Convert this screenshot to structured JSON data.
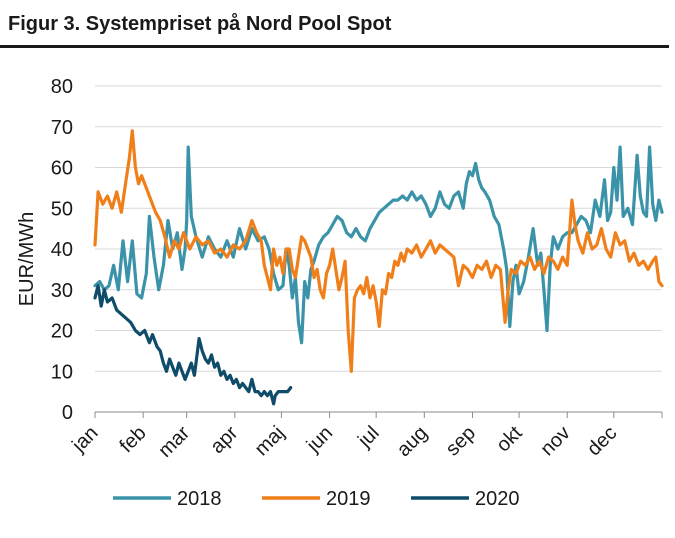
{
  "figure_title": "Figur 3. Systempriset på Nord Pool Spot",
  "chart_data": {
    "type": "line",
    "title": "Figur 3. Systempriset på Nord Pool Spot",
    "xlabel": "",
    "ylabel": "EUR/MWh",
    "ylim": [
      0,
      80
    ],
    "yticks": [
      0,
      10,
      20,
      30,
      40,
      50,
      60,
      70,
      80
    ],
    "xlim": [
      1,
      366
    ],
    "x_unit": "day of year",
    "month_labels": [
      "jan",
      "feb",
      "mar",
      "apr",
      "maj",
      "jun",
      "jul",
      "aug",
      "sep",
      "okt",
      "nov",
      "dec"
    ],
    "month_start_days": [
      1,
      32,
      60,
      91,
      121,
      152,
      182,
      213,
      244,
      274,
      305,
      335
    ],
    "grid": "horizontal",
    "legend_position": "bottom",
    "series": [
      {
        "name": "2018",
        "color": "#3a93a8",
        "points": [
          [
            1,
            31
          ],
          [
            4,
            32
          ],
          [
            7,
            30
          ],
          [
            10,
            31
          ],
          [
            13,
            36
          ],
          [
            16,
            30
          ],
          [
            19,
            42
          ],
          [
            22,
            32
          ],
          [
            25,
            42
          ],
          [
            28,
            29
          ],
          [
            31,
            28
          ],
          [
            34,
            34
          ],
          [
            36,
            48
          ],
          [
            39,
            38
          ],
          [
            42,
            30
          ],
          [
            45,
            36
          ],
          [
            48,
            47
          ],
          [
            51,
            40
          ],
          [
            54,
            44
          ],
          [
            57,
            35
          ],
          [
            59,
            40
          ],
          [
            60,
            47
          ],
          [
            61,
            65
          ],
          [
            63,
            48
          ],
          [
            66,
            43
          ],
          [
            70,
            38
          ],
          [
            74,
            43
          ],
          [
            78,
            40
          ],
          [
            82,
            38
          ],
          [
            86,
            42
          ],
          [
            90,
            38
          ],
          [
            94,
            45
          ],
          [
            98,
            40
          ],
          [
            102,
            45
          ],
          [
            106,
            42
          ],
          [
            110,
            43
          ],
          [
            113,
            40
          ],
          [
            116,
            34
          ],
          [
            119,
            30
          ],
          [
            122,
            31
          ],
          [
            124,
            40
          ],
          [
            126,
            36
          ],
          [
            128,
            28
          ],
          [
            130,
            33
          ],
          [
            132,
            22
          ],
          [
            134,
            17
          ],
          [
            136,
            32
          ],
          [
            138,
            28
          ],
          [
            140,
            35
          ],
          [
            142,
            37
          ],
          [
            145,
            41
          ],
          [
            148,
            43
          ],
          [
            151,
            44
          ],
          [
            154,
            46
          ],
          [
            157,
            48
          ],
          [
            160,
            47
          ],
          [
            163,
            44
          ],
          [
            166,
            43
          ],
          [
            169,
            45
          ],
          [
            172,
            43
          ],
          [
            175,
            42
          ],
          [
            178,
            45
          ],
          [
            181,
            47
          ],
          [
            184,
            49
          ],
          [
            187,
            50
          ],
          [
            190,
            51
          ],
          [
            193,
            52
          ],
          [
            196,
            52
          ],
          [
            199,
            53
          ],
          [
            202,
            52
          ],
          [
            205,
            54
          ],
          [
            208,
            52
          ],
          [
            211,
            53
          ],
          [
            214,
            51
          ],
          [
            217,
            48
          ],
          [
            220,
            50
          ],
          [
            223,
            54
          ],
          [
            226,
            51
          ],
          [
            229,
            50
          ],
          [
            232,
            53
          ],
          [
            235,
            54
          ],
          [
            238,
            50
          ],
          [
            240,
            56
          ],
          [
            242,
            59
          ],
          [
            244,
            58
          ],
          [
            246,
            61
          ],
          [
            248,
            57
          ],
          [
            250,
            55
          ],
          [
            252,
            54
          ],
          [
            255,
            52
          ],
          [
            258,
            48
          ],
          [
            261,
            46
          ],
          [
            264,
            40
          ],
          [
            266,
            35
          ],
          [
            268,
            21
          ],
          [
            270,
            32
          ],
          [
            272,
            36
          ],
          [
            274,
            29
          ],
          [
            277,
            32
          ],
          [
            280,
            38
          ],
          [
            283,
            45
          ],
          [
            286,
            36
          ],
          [
            288,
            39
          ],
          [
            290,
            30
          ],
          [
            292,
            20
          ],
          [
            294,
            36
          ],
          [
            296,
            43
          ],
          [
            299,
            40
          ],
          [
            302,
            43
          ],
          [
            305,
            44
          ],
          [
            308,
            44
          ],
          [
            311,
            46
          ],
          [
            314,
            48
          ],
          [
            317,
            47
          ],
          [
            320,
            44
          ],
          [
            323,
            52
          ],
          [
            326,
            48
          ],
          [
            329,
            57
          ],
          [
            331,
            47
          ],
          [
            333,
            49
          ],
          [
            335,
            60
          ],
          [
            337,
            52
          ],
          [
            339,
            65
          ],
          [
            341,
            48
          ],
          [
            344,
            50
          ],
          [
            347,
            46
          ],
          [
            350,
            63
          ],
          [
            352,
            53
          ],
          [
            354,
            49
          ],
          [
            356,
            48
          ],
          [
            358,
            65
          ],
          [
            360,
            51
          ],
          [
            362,
            47
          ],
          [
            364,
            52
          ],
          [
            366,
            49
          ]
        ]
      },
      {
        "name": "2019",
        "color": "#f07f1a",
        "points": [
          [
            1,
            41
          ],
          [
            3,
            54
          ],
          [
            6,
            51
          ],
          [
            9,
            53
          ],
          [
            12,
            50
          ],
          [
            15,
            54
          ],
          [
            18,
            49
          ],
          [
            21,
            57
          ],
          [
            23,
            62
          ],
          [
            25,
            69
          ],
          [
            27,
            60
          ],
          [
            29,
            56
          ],
          [
            31,
            58
          ],
          [
            34,
            55
          ],
          [
            37,
            52
          ],
          [
            40,
            49
          ],
          [
            43,
            47
          ],
          [
            46,
            43
          ],
          [
            49,
            38
          ],
          [
            52,
            42
          ],
          [
            55,
            40
          ],
          [
            58,
            44
          ],
          [
            62,
            40
          ],
          [
            66,
            43
          ],
          [
            70,
            41
          ],
          [
            74,
            42
          ],
          [
            78,
            39
          ],
          [
            82,
            40
          ],
          [
            86,
            38
          ],
          [
            90,
            41
          ],
          [
            94,
            40
          ],
          [
            98,
            42
          ],
          [
            102,
            47
          ],
          [
            105,
            44
          ],
          [
            108,
            42
          ],
          [
            110,
            36
          ],
          [
            112,
            33
          ],
          [
            114,
            30
          ],
          [
            116,
            40
          ],
          [
            118,
            36
          ],
          [
            120,
            38
          ],
          [
            122,
            34
          ],
          [
            124,
            40
          ],
          [
            126,
            40
          ],
          [
            128,
            35
          ],
          [
            130,
            33
          ],
          [
            132,
            38
          ],
          [
            134,
            43
          ],
          [
            136,
            42
          ],
          [
            138,
            40
          ],
          [
            140,
            38
          ],
          [
            142,
            33
          ],
          [
            144,
            35
          ],
          [
            146,
            30
          ],
          [
            148,
            28
          ],
          [
            150,
            34
          ],
          [
            152,
            36
          ],
          [
            154,
            40
          ],
          [
            156,
            35
          ],
          [
            158,
            30
          ],
          [
            160,
            33
          ],
          [
            162,
            37
          ],
          [
            164,
            20
          ],
          [
            166,
            10
          ],
          [
            168,
            28
          ],
          [
            170,
            30
          ],
          [
            172,
            31
          ],
          [
            174,
            29
          ],
          [
            176,
            33
          ],
          [
            178,
            28
          ],
          [
            180,
            31
          ],
          [
            182,
            27
          ],
          [
            184,
            21
          ],
          [
            186,
            30
          ],
          [
            188,
            29
          ],
          [
            190,
            34
          ],
          [
            192,
            33
          ],
          [
            194,
            37
          ],
          [
            196,
            36
          ],
          [
            198,
            39
          ],
          [
            200,
            37
          ],
          [
            202,
            40
          ],
          [
            205,
            39
          ],
          [
            208,
            41
          ],
          [
            211,
            38
          ],
          [
            214,
            40
          ],
          [
            217,
            42
          ],
          [
            220,
            39
          ],
          [
            223,
            41
          ],
          [
            226,
            40
          ],
          [
            229,
            39
          ],
          [
            232,
            38
          ],
          [
            235,
            31
          ],
          [
            238,
            36
          ],
          [
            241,
            35
          ],
          [
            244,
            33
          ],
          [
            247,
            36
          ],
          [
            250,
            35
          ],
          [
            253,
            37
          ],
          [
            256,
            33
          ],
          [
            259,
            36
          ],
          [
            262,
            35
          ],
          [
            265,
            22
          ],
          [
            267,
            30
          ],
          [
            269,
            35
          ],
          [
            272,
            34
          ],
          [
            275,
            37
          ],
          [
            278,
            36
          ],
          [
            281,
            38
          ],
          [
            284,
            35
          ],
          [
            287,
            37
          ],
          [
            290,
            34
          ],
          [
            293,
            38
          ],
          [
            296,
            37
          ],
          [
            299,
            35
          ],
          [
            302,
            38
          ],
          [
            305,
            36
          ],
          [
            308,
            52
          ],
          [
            310,
            46
          ],
          [
            312,
            42
          ],
          [
            315,
            39
          ],
          [
            318,
            44
          ],
          [
            321,
            40
          ],
          [
            324,
            41
          ],
          [
            327,
            45
          ],
          [
            330,
            40
          ],
          [
            333,
            38
          ],
          [
            336,
            44
          ],
          [
            339,
            41
          ],
          [
            342,
            42
          ],
          [
            345,
            37
          ],
          [
            348,
            39
          ],
          [
            351,
            36
          ],
          [
            354,
            37
          ],
          [
            357,
            35
          ],
          [
            360,
            37
          ],
          [
            362,
            38
          ],
          [
            364,
            32
          ],
          [
            366,
            31
          ]
        ]
      },
      {
        "name": "2020",
        "color": "#0e4c6a",
        "points": [
          [
            1,
            28
          ],
          [
            3,
            31
          ],
          [
            5,
            26
          ],
          [
            7,
            30
          ],
          [
            9,
            27
          ],
          [
            12,
            28
          ],
          [
            15,
            25
          ],
          [
            18,
            24
          ],
          [
            21,
            23
          ],
          [
            24,
            22
          ],
          [
            27,
            20
          ],
          [
            30,
            19
          ],
          [
            33,
            20
          ],
          [
            36,
            17
          ],
          [
            38,
            19
          ],
          [
            41,
            16
          ],
          [
            43,
            15
          ],
          [
            45,
            12
          ],
          [
            47,
            10
          ],
          [
            49,
            13
          ],
          [
            51,
            11
          ],
          [
            53,
            9
          ],
          [
            55,
            12
          ],
          [
            57,
            10
          ],
          [
            59,
            8
          ],
          [
            61,
            10
          ],
          [
            63,
            12
          ],
          [
            65,
            9
          ],
          [
            68,
            18
          ],
          [
            70,
            15
          ],
          [
            72,
            13
          ],
          [
            74,
            12
          ],
          [
            76,
            14
          ],
          [
            78,
            11
          ],
          [
            80,
            12
          ],
          [
            82,
            9
          ],
          [
            84,
            10
          ],
          [
            86,
            8
          ],
          [
            88,
            9
          ],
          [
            90,
            7
          ],
          [
            92,
            8
          ],
          [
            94,
            6
          ],
          [
            96,
            7
          ],
          [
            98,
            6
          ],
          [
            100,
            5
          ],
          [
            102,
            8
          ],
          [
            104,
            5
          ],
          [
            106,
            5
          ],
          [
            108,
            4
          ],
          [
            110,
            5
          ],
          [
            112,
            4
          ],
          [
            114,
            5
          ],
          [
            116,
            2
          ],
          [
            117,
            4
          ],
          [
            119,
            5
          ],
          [
            121,
            5
          ],
          [
            123,
            5
          ],
          [
            125,
            5
          ],
          [
            127,
            6
          ]
        ]
      }
    ]
  }
}
